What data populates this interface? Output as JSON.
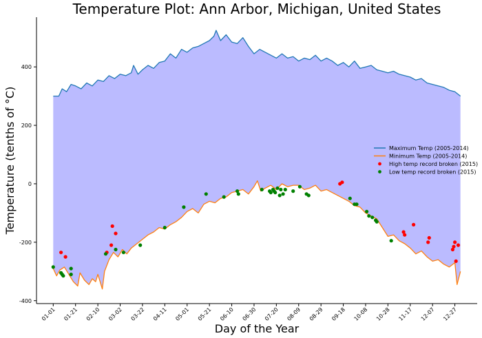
{
  "chart_data": {
    "type": "line",
    "title": "Temperature Plot: Ann Arbor, Michigan, United States",
    "xlabel": "Day of the Year",
    "ylabel": "Temperature (tenths of $^\\circ$C)",
    "ylabel_display": "Temperature (tenths of °C)",
    "xlim": [
      -15,
      380
    ],
    "ylim": [
      -410,
      570
    ],
    "y_ticks": [
      -400,
      -200,
      0,
      200,
      400
    ],
    "x_ticks": [
      {
        "day": 0,
        "label": "01-01"
      },
      {
        "day": 20,
        "label": "01-21"
      },
      {
        "day": 40,
        "label": "02-10"
      },
      {
        "day": 60,
        "label": "03-02"
      },
      {
        "day": 80,
        "label": "03-22"
      },
      {
        "day": 100,
        "label": "04-11"
      },
      {
        "day": 120,
        "label": "05-01"
      },
      {
        "day": 140,
        "label": "05-21"
      },
      {
        "day": 160,
        "label": "06-10"
      },
      {
        "day": 180,
        "label": "06-30"
      },
      {
        "day": 200,
        "label": "07-20"
      },
      {
        "day": 220,
        "label": "08-09"
      },
      {
        "day": 240,
        "label": "08-29"
      },
      {
        "day": 260,
        "label": "09-18"
      },
      {
        "day": 280,
        "label": "10-08"
      },
      {
        "day": 300,
        "label": "10-28"
      },
      {
        "day": 320,
        "label": "11-17"
      },
      {
        "day": 340,
        "label": "12-07"
      },
      {
        "day": 360,
        "label": "12-27"
      }
    ],
    "grid": false,
    "legend_position": "right",
    "fill_between": {
      "color": "#bbbbff"
    },
    "series": [
      {
        "name": "Maximum Temp (2005-2014)",
        "color": "#1f77b4",
        "points": [
          [
            0,
            300
          ],
          [
            5,
            300
          ],
          [
            8,
            325
          ],
          [
            12,
            315
          ],
          [
            16,
            340
          ],
          [
            20,
            335
          ],
          [
            25,
            325
          ],
          [
            30,
            345
          ],
          [
            35,
            335
          ],
          [
            40,
            355
          ],
          [
            45,
            350
          ],
          [
            50,
            370
          ],
          [
            55,
            360
          ],
          [
            60,
            375
          ],
          [
            65,
            370
          ],
          [
            70,
            380
          ],
          [
            72,
            405
          ],
          [
            76,
            375
          ],
          [
            80,
            390
          ],
          [
            85,
            405
          ],
          [
            90,
            395
          ],
          [
            95,
            415
          ],
          [
            100,
            420
          ],
          [
            105,
            445
          ],
          [
            110,
            430
          ],
          [
            115,
            460
          ],
          [
            120,
            450
          ],
          [
            125,
            465
          ],
          [
            130,
            470
          ],
          [
            135,
            480
          ],
          [
            140,
            490
          ],
          [
            144,
            505
          ],
          [
            146,
            525
          ],
          [
            150,
            490
          ],
          [
            155,
            510
          ],
          [
            160,
            485
          ],
          [
            165,
            480
          ],
          [
            170,
            500
          ],
          [
            175,
            470
          ],
          [
            180,
            445
          ],
          [
            185,
            460
          ],
          [
            190,
            450
          ],
          [
            195,
            440
          ],
          [
            200,
            430
          ],
          [
            205,
            445
          ],
          [
            210,
            430
          ],
          [
            215,
            435
          ],
          [
            220,
            420
          ],
          [
            225,
            430
          ],
          [
            230,
            425
          ],
          [
            235,
            440
          ],
          [
            240,
            420
          ],
          [
            245,
            430
          ],
          [
            250,
            420
          ],
          [
            255,
            405
          ],
          [
            260,
            415
          ],
          [
            265,
            400
          ],
          [
            270,
            420
          ],
          [
            275,
            395
          ],
          [
            280,
            400
          ],
          [
            285,
            405
          ],
          [
            290,
            390
          ],
          [
            295,
            385
          ],
          [
            300,
            380
          ],
          [
            305,
            385
          ],
          [
            310,
            375
          ],
          [
            315,
            370
          ],
          [
            320,
            365
          ],
          [
            325,
            355
          ],
          [
            330,
            360
          ],
          [
            335,
            345
          ],
          [
            340,
            340
          ],
          [
            345,
            335
          ],
          [
            350,
            330
          ],
          [
            355,
            320
          ],
          [
            360,
            315
          ],
          [
            365,
            300
          ]
        ]
      },
      {
        "name": "Minimum Temp (2005-2014)",
        "color": "#ff7f0e",
        "points": [
          [
            0,
            -290
          ],
          [
            3,
            -315
          ],
          [
            6,
            -295
          ],
          [
            10,
            -285
          ],
          [
            14,
            -310
          ],
          [
            18,
            -335
          ],
          [
            22,
            -350
          ],
          [
            24,
            -305
          ],
          [
            28,
            -330
          ],
          [
            32,
            -345
          ],
          [
            35,
            -325
          ],
          [
            38,
            -335
          ],
          [
            40,
            -310
          ],
          [
            42,
            -335
          ],
          [
            44,
            -360
          ],
          [
            46,
            -300
          ],
          [
            50,
            -260
          ],
          [
            54,
            -235
          ],
          [
            58,
            -250
          ],
          [
            62,
            -225
          ],
          [
            66,
            -240
          ],
          [
            70,
            -220
          ],
          [
            75,
            -205
          ],
          [
            80,
            -190
          ],
          [
            85,
            -175
          ],
          [
            90,
            -165
          ],
          [
            95,
            -150
          ],
          [
            100,
            -155
          ],
          [
            105,
            -140
          ],
          [
            110,
            -130
          ],
          [
            115,
            -115
          ],
          [
            120,
            -95
          ],
          [
            125,
            -85
          ],
          [
            130,
            -100
          ],
          [
            135,
            -70
          ],
          [
            140,
            -60
          ],
          [
            145,
            -65
          ],
          [
            150,
            -50
          ],
          [
            155,
            -45
          ],
          [
            160,
            -30
          ],
          [
            165,
            -25
          ],
          [
            170,
            -20
          ],
          [
            175,
            -35
          ],
          [
            180,
            -10
          ],
          [
            183,
            10
          ],
          [
            186,
            -25
          ],
          [
            190,
            -15
          ],
          [
            195,
            -5
          ],
          [
            200,
            -20
          ],
          [
            205,
            0
          ],
          [
            210,
            -10
          ],
          [
            215,
            -5
          ],
          [
            220,
            -5
          ],
          [
            225,
            -20
          ],
          [
            230,
            -15
          ],
          [
            235,
            -5
          ],
          [
            240,
            -25
          ],
          [
            245,
            -20
          ],
          [
            250,
            -30
          ],
          [
            255,
            -40
          ],
          [
            260,
            -50
          ],
          [
            265,
            -60
          ],
          [
            270,
            -75
          ],
          [
            275,
            -80
          ],
          [
            280,
            -100
          ],
          [
            285,
            -110
          ],
          [
            290,
            -120
          ],
          [
            295,
            -150
          ],
          [
            300,
            -180
          ],
          [
            305,
            -175
          ],
          [
            310,
            -195
          ],
          [
            315,
            -205
          ],
          [
            320,
            -220
          ],
          [
            325,
            -240
          ],
          [
            330,
            -230
          ],
          [
            335,
            -250
          ],
          [
            340,
            -265
          ],
          [
            345,
            -260
          ],
          [
            350,
            -275
          ],
          [
            355,
            -285
          ],
          [
            360,
            -270
          ],
          [
            362,
            -345
          ],
          [
            365,
            -300
          ]
        ]
      }
    ],
    "scatter_series": [
      {
        "name": "High temp record broken (2015)",
        "color": "#ff0000",
        "points": [
          [
            7,
            -235
          ],
          [
            11,
            -250
          ],
          [
            48,
            -235
          ],
          [
            52,
            -210
          ],
          [
            53,
            -145
          ],
          [
            56,
            -170
          ],
          [
            257,
            0
          ],
          [
            259,
            5
          ],
          [
            314,
            -165
          ],
          [
            315,
            -175
          ],
          [
            323,
            -140
          ],
          [
            336,
            -200
          ],
          [
            337,
            -185
          ],
          [
            358,
            -225
          ],
          [
            359,
            -215
          ],
          [
            360,
            -200
          ],
          [
            361,
            -265
          ],
          [
            363,
            -210
          ]
        ]
      },
      {
        "name": "Low temp record broken (2015)",
        "color": "#008000",
        "points": [
          [
            0,
            -285
          ],
          [
            7,
            -305
          ],
          [
            8,
            -310
          ],
          [
            9,
            -315
          ],
          [
            16,
            -310
          ],
          [
            16,
            -290
          ],
          [
            47,
            -240
          ],
          [
            56,
            -225
          ],
          [
            63,
            -235
          ],
          [
            78,
            -210
          ],
          [
            100,
            -150
          ],
          [
            117,
            -80
          ],
          [
            137,
            -35
          ],
          [
            153,
            -45
          ],
          [
            165,
            -25
          ],
          [
            166,
            -35
          ],
          [
            187,
            -20
          ],
          [
            194,
            -25
          ],
          [
            195,
            -30
          ],
          [
            197,
            -20
          ],
          [
            198,
            -25
          ],
          [
            199,
            -30
          ],
          [
            201,
            -15
          ],
          [
            203,
            -40
          ],
          [
            204,
            -20
          ],
          [
            206,
            -35
          ],
          [
            208,
            -20
          ],
          [
            215,
            -25
          ],
          [
            221,
            -10
          ],
          [
            227,
            -35
          ],
          [
            229,
            -40
          ],
          [
            266,
            -50
          ],
          [
            270,
            -70
          ],
          [
            272,
            -70
          ],
          [
            281,
            -95
          ],
          [
            283,
            -110
          ],
          [
            286,
            -115
          ],
          [
            289,
            -125
          ],
          [
            290,
            -130
          ],
          [
            303,
            -195
          ]
        ]
      }
    ]
  }
}
